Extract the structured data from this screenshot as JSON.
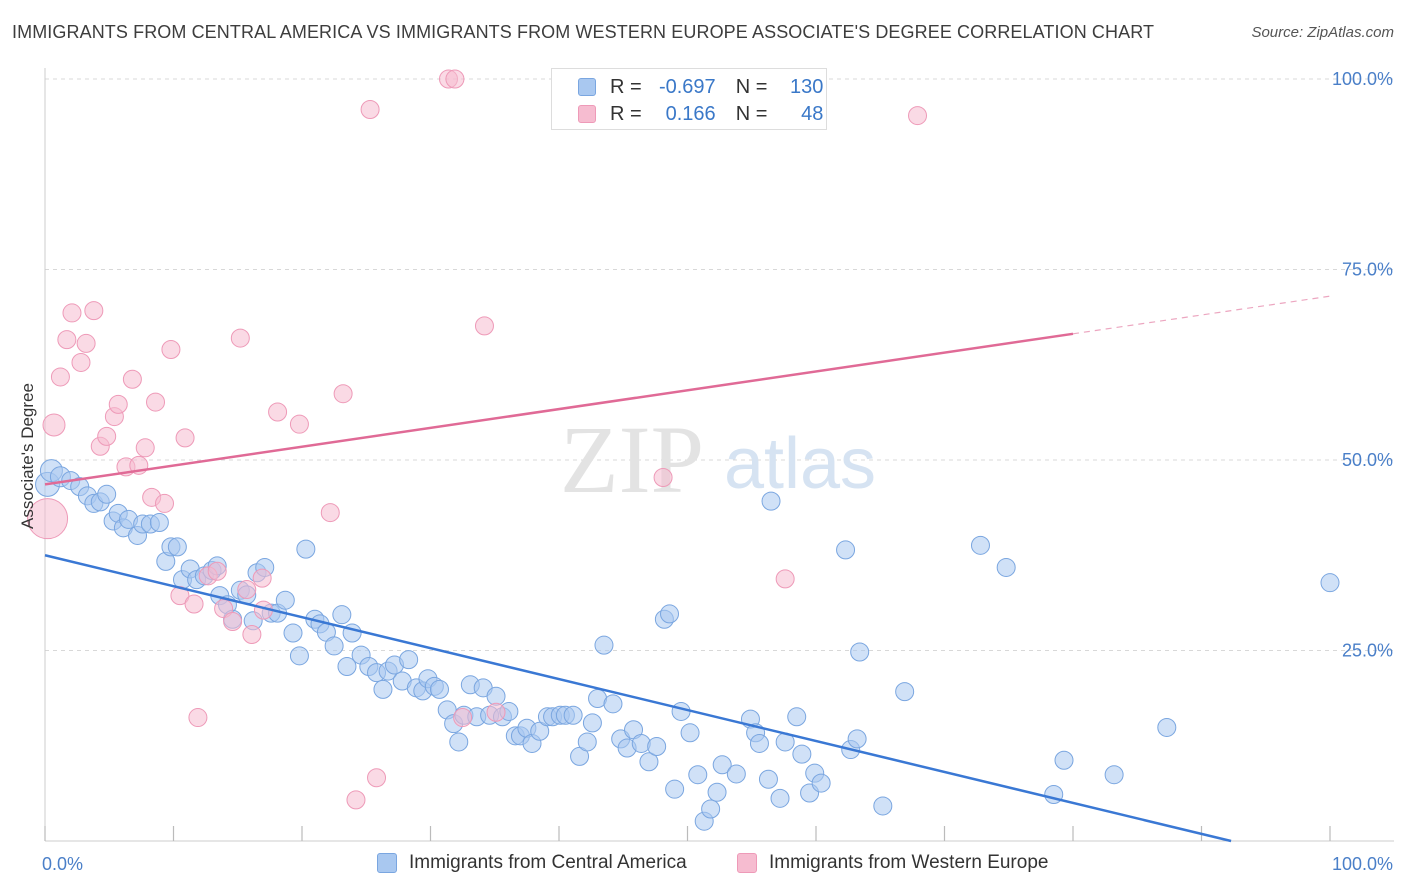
{
  "title": "IMMIGRANTS FROM CENTRAL AMERICA VS IMMIGRANTS FROM WESTERN EUROPE ASSOCIATE'S DEGREE CORRELATION CHART",
  "source": "Source: ZipAtlas.com",
  "watermark": {
    "zip": "ZIP",
    "atlas": "atlas"
  },
  "legend": {
    "r_label": "R =",
    "n_label": "N =",
    "rows": [
      {
        "r": "-0.697",
        "n": "130"
      },
      {
        "r": "0.166",
        "n": "48"
      }
    ]
  },
  "colors": {
    "blue_fill": "#a9c8f0",
    "blue_stroke": "#7aa6e0",
    "blue_line": "#3a78d4",
    "pink_fill": "#f6bcd0",
    "pink_stroke": "#ee9ab8",
    "pink_line": "#e06a96",
    "axis_label": "#4a7fc8",
    "grid": "#d8d8d8"
  },
  "chart_data": {
    "type": "scatter",
    "title": "IMMIGRANTS FROM CENTRAL AMERICA VS IMMIGRANTS FROM WESTERN EUROPE ASSOCIATE'S DEGREE CORRELATION CHART",
    "xlabel": "",
    "ylabel": "Associate's Degree",
    "xlim": [
      0,
      100
    ],
    "ylim": [
      0,
      100
    ],
    "x_tick_labels": [
      "0.0%",
      "100.0%"
    ],
    "y_ticks": [
      {
        "value": 25,
        "label": "25.0%"
      },
      {
        "value": 50,
        "label": "50.0%"
      },
      {
        "value": 75,
        "label": "75.0%"
      },
      {
        "value": 100,
        "label": "100.0%"
      }
    ],
    "series": [
      {
        "name": "Immigrants from Central America",
        "color": "blue",
        "r": -0.697,
        "n": 130,
        "trend": {
          "x0": 0,
          "y0": 37.5,
          "x1": 92.3,
          "y1": 0,
          "dashed_from": null
        },
        "points": [
          [
            0.2,
            46.8,
            12
          ],
          [
            0.5,
            48.6,
            11
          ],
          [
            1.2,
            47.8,
            10
          ],
          [
            2,
            47.3,
            9
          ],
          [
            2.7,
            46.5,
            9
          ],
          [
            3.3,
            45.3,
            9
          ],
          [
            3.8,
            44.3,
            9
          ],
          [
            4.3,
            44.5,
            9
          ],
          [
            4.8,
            45.5,
            9
          ],
          [
            5.3,
            42,
            9
          ],
          [
            5.7,
            43,
            9
          ],
          [
            6.1,
            41.1,
            9
          ],
          [
            6.5,
            42.2,
            9
          ],
          [
            7.2,
            40.1,
            9
          ],
          [
            7.6,
            41.6,
            9
          ],
          [
            8.2,
            41.6,
            9
          ],
          [
            8.9,
            41.8,
            9
          ],
          [
            9.4,
            36.7,
            9
          ],
          [
            9.8,
            38.6,
            9
          ],
          [
            10.3,
            38.6,
            9
          ],
          [
            10.7,
            34.3,
            9
          ],
          [
            11.3,
            35.7,
            9
          ],
          [
            11.8,
            34.3,
            9
          ],
          [
            12.4,
            34.8,
            9
          ],
          [
            13,
            35.5,
            9
          ],
          [
            13.4,
            36.1,
            9
          ],
          [
            13.6,
            32.2,
            9
          ],
          [
            14.2,
            31,
            9
          ],
          [
            14.6,
            29.1,
            9
          ],
          [
            15.2,
            32.9,
            9
          ],
          [
            15.7,
            32.3,
            9
          ],
          [
            16.2,
            28.9,
            9
          ],
          [
            16.5,
            35.2,
            9
          ],
          [
            17.1,
            35.9,
            9
          ],
          [
            17.6,
            29.9,
            9
          ],
          [
            18.1,
            29.9,
            9
          ],
          [
            18.7,
            31.6,
            9
          ],
          [
            19.3,
            27.3,
            9
          ],
          [
            19.8,
            24.3,
            9
          ],
          [
            20.3,
            38.3,
            9
          ],
          [
            21,
            29.1,
            9
          ],
          [
            21.4,
            28.5,
            9
          ],
          [
            21.9,
            27.4,
            9
          ],
          [
            22.5,
            25.6,
            9
          ],
          [
            23.1,
            29.7,
            9
          ],
          [
            23.5,
            22.9,
            9
          ],
          [
            23.9,
            27.3,
            9
          ],
          [
            24.6,
            24.4,
            9
          ],
          [
            25.2,
            22.9,
            9
          ],
          [
            25.8,
            22.1,
            9
          ],
          [
            26.3,
            19.9,
            9
          ],
          [
            26.7,
            22.3,
            9
          ],
          [
            27.2,
            23.1,
            9
          ],
          [
            27.8,
            21,
            9
          ],
          [
            28.3,
            23.8,
            9
          ],
          [
            28.9,
            20.1,
            9
          ],
          [
            29.4,
            19.7,
            9
          ],
          [
            29.8,
            21.3,
            9
          ],
          [
            30.3,
            20.3,
            9
          ],
          [
            30.7,
            19.9,
            9
          ],
          [
            31.3,
            17.2,
            9
          ],
          [
            31.8,
            15.4,
            9
          ],
          [
            32.2,
            13,
            9
          ],
          [
            32.6,
            16.5,
            9
          ],
          [
            33.1,
            20.5,
            9
          ],
          [
            33.6,
            16.3,
            9
          ],
          [
            34.1,
            20.1,
            9
          ],
          [
            34.6,
            16.5,
            9
          ],
          [
            35.1,
            19,
            9
          ],
          [
            35.6,
            16.3,
            9
          ],
          [
            36.1,
            17,
            9
          ],
          [
            36.6,
            13.8,
            9
          ],
          [
            37,
            13.8,
            9
          ],
          [
            37.5,
            14.8,
            9
          ],
          [
            37.9,
            12.8,
            9
          ],
          [
            38.5,
            14.4,
            9
          ],
          [
            39.1,
            16.3,
            9
          ],
          [
            39.5,
            16.3,
            9
          ],
          [
            40.1,
            16.5,
            9
          ],
          [
            40.5,
            16.5,
            9
          ],
          [
            41.1,
            16.5,
            9
          ],
          [
            41.6,
            11.1,
            9
          ],
          [
            42.2,
            13,
            9
          ],
          [
            42.6,
            15.5,
            9
          ],
          [
            43,
            18.7,
            9
          ],
          [
            43.5,
            25.7,
            9
          ],
          [
            44.2,
            18,
            9
          ],
          [
            44.8,
            13.4,
            9
          ],
          [
            45.3,
            12.2,
            9
          ],
          [
            45.8,
            14.6,
            9
          ],
          [
            46.4,
            12.8,
            9
          ],
          [
            47,
            10.4,
            9
          ],
          [
            47.6,
            12.4,
            9
          ],
          [
            48.2,
            29.1,
            9
          ],
          [
            48.6,
            29.8,
            9
          ],
          [
            49,
            6.8,
            9
          ],
          [
            49.5,
            17,
            9
          ],
          [
            50.2,
            14.2,
            9
          ],
          [
            50.8,
            8.7,
            9
          ],
          [
            51.3,
            2.6,
            9
          ],
          [
            51.8,
            4.2,
            9
          ],
          [
            52.3,
            6.4,
            9
          ],
          [
            52.7,
            10,
            9
          ],
          [
            53.8,
            8.8,
            9
          ],
          [
            54.9,
            16,
            9
          ],
          [
            55.3,
            14.2,
            9
          ],
          [
            55.6,
            12.8,
            9
          ],
          [
            56.3,
            8.1,
            9
          ],
          [
            56.5,
            44.6,
            9
          ],
          [
            57.2,
            5.6,
            9
          ],
          [
            57.6,
            13,
            9
          ],
          [
            58.5,
            16.3,
            9
          ],
          [
            58.9,
            11.4,
            9
          ],
          [
            59.5,
            6.3,
            9
          ],
          [
            59.9,
            8.9,
            9
          ],
          [
            60.4,
            7.6,
            9
          ],
          [
            62.3,
            38.2,
            9
          ],
          [
            62.7,
            12,
            9
          ],
          [
            63.2,
            13.4,
            9
          ],
          [
            63.4,
            24.8,
            9
          ],
          [
            65.2,
            4.6,
            9
          ],
          [
            66.9,
            19.6,
            9
          ],
          [
            72.8,
            38.8,
            9
          ],
          [
            74.8,
            35.9,
            9
          ],
          [
            78.5,
            6.1,
            9
          ],
          [
            79.3,
            10.6,
            9
          ],
          [
            83.2,
            8.7,
            9
          ],
          [
            87.3,
            14.9,
            9
          ],
          [
            100,
            33.9,
            9
          ]
        ]
      },
      {
        "name": "Immigrants from Western Europe",
        "color": "pink",
        "r": 0.166,
        "n": 48,
        "trend": {
          "x0": 0,
          "y0": 46.8,
          "x1": 100,
          "y1": 71.5,
          "dashed_from": 80
        },
        "points": [
          [
            0.2,
            42.3,
            20
          ],
          [
            0.7,
            54.6,
            11
          ],
          [
            1.2,
            60.9,
            9
          ],
          [
            1.7,
            65.8,
            9
          ],
          [
            2.1,
            69.3,
            9
          ],
          [
            3.2,
            65.3,
            9
          ],
          [
            2.8,
            62.8,
            9
          ],
          [
            3.8,
            69.6,
            9
          ],
          [
            4.3,
            51.8,
            9
          ],
          [
            4.8,
            53.1,
            9
          ],
          [
            5.4,
            55.7,
            9
          ],
          [
            5.7,
            57.3,
            9
          ],
          [
            6.3,
            49.1,
            9
          ],
          [
            6.8,
            60.6,
            9
          ],
          [
            7.3,
            49.3,
            9
          ],
          [
            7.8,
            51.6,
            9
          ],
          [
            8.3,
            45.1,
            9
          ],
          [
            8.6,
            57.6,
            9
          ],
          [
            9.3,
            44.3,
            9
          ],
          [
            9.8,
            64.5,
            9
          ],
          [
            10.5,
            32.2,
            9
          ],
          [
            10.9,
            52.9,
            9
          ],
          [
            11.6,
            31.1,
            9
          ],
          [
            11.9,
            16.2,
            9
          ],
          [
            12.7,
            34.8,
            9
          ],
          [
            13.4,
            35.4,
            9
          ],
          [
            13.9,
            30.5,
            9
          ],
          [
            14.6,
            28.8,
            9
          ],
          [
            15.2,
            66,
            9
          ],
          [
            15.7,
            33,
            9
          ],
          [
            16.1,
            27.1,
            9
          ],
          [
            16.9,
            34.5,
            9
          ],
          [
            17,
            30.3,
            9
          ],
          [
            18.1,
            56.3,
            9
          ],
          [
            19.8,
            54.7,
            9
          ],
          [
            22.2,
            43.1,
            9
          ],
          [
            23.2,
            58.7,
            9
          ],
          [
            24.2,
            5.4,
            9
          ],
          [
            25.3,
            96,
            9
          ],
          [
            25.8,
            8.3,
            9
          ],
          [
            31.4,
            100,
            9
          ],
          [
            31.9,
            100,
            9
          ],
          [
            32.5,
            16.2,
            9
          ],
          [
            34.2,
            67.6,
            9
          ],
          [
            35.1,
            16.9,
            9
          ],
          [
            48.1,
            47.7,
            9
          ],
          [
            57.6,
            34.4,
            9
          ],
          [
            67.9,
            95.2,
            9
          ]
        ]
      }
    ]
  },
  "bottom_legend": [
    {
      "label": "Immigrants from Central America"
    },
    {
      "label": "Immigrants from Western Europe"
    }
  ]
}
